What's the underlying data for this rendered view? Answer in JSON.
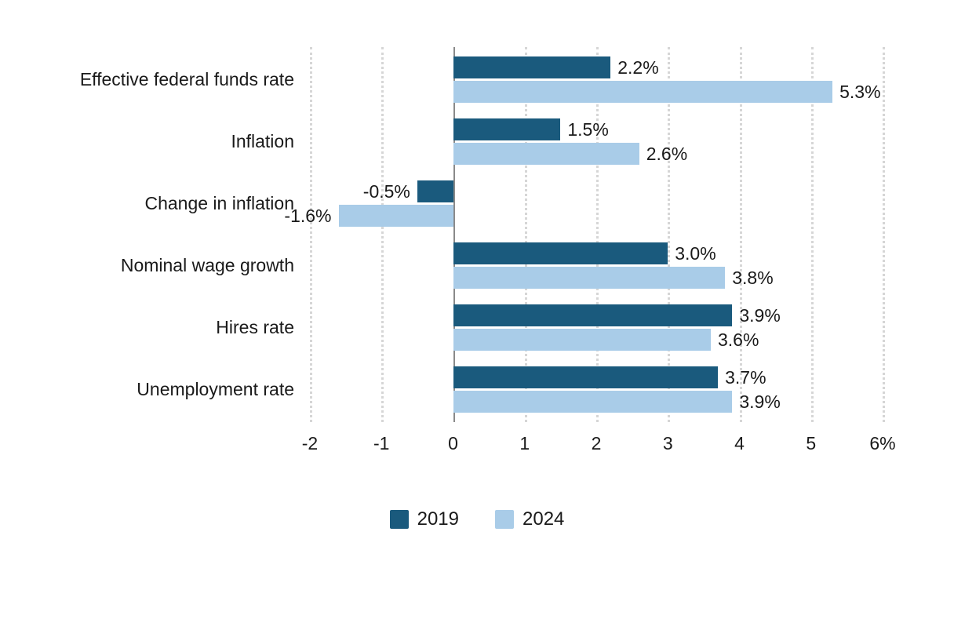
{
  "chart_data": {
    "type": "bar",
    "orientation": "horizontal",
    "categories": [
      "Effective federal funds rate",
      "Inflation",
      "Change in inflation",
      "Nominal wage growth",
      "Hires rate",
      "Unemployment rate"
    ],
    "series": [
      {
        "name": "2019",
        "color": "#1a5a7d",
        "values": [
          2.2,
          1.5,
          -0.5,
          3.0,
          3.9,
          3.7
        ],
        "labels": [
          "2.2%",
          "1.5%",
          "-0.5%",
          "3.0%",
          "3.9%",
          "3.7%"
        ]
      },
      {
        "name": "2024",
        "color": "#a9cce8",
        "values": [
          5.3,
          2.6,
          -1.6,
          3.8,
          3.6,
          3.9
        ],
        "labels": [
          "5.3%",
          "2.6%",
          "-1.6%",
          "3.8%",
          "3.6%",
          "3.9%"
        ]
      }
    ],
    "xlim": [
      -2,
      6
    ],
    "x_ticks": [
      -2,
      -1,
      0,
      1,
      2,
      3,
      4,
      5,
      6
    ],
    "x_tick_labels": [
      "-2",
      "-1",
      "0",
      "1",
      "2",
      "3",
      "4",
      "5",
      "6%"
    ],
    "grid": "dotted-vertical",
    "legend_position": "bottom",
    "text_color": "#1a1a1a",
    "gridline_color": "#d6d6d6",
    "zeroline_color": "#8a8a8a"
  }
}
